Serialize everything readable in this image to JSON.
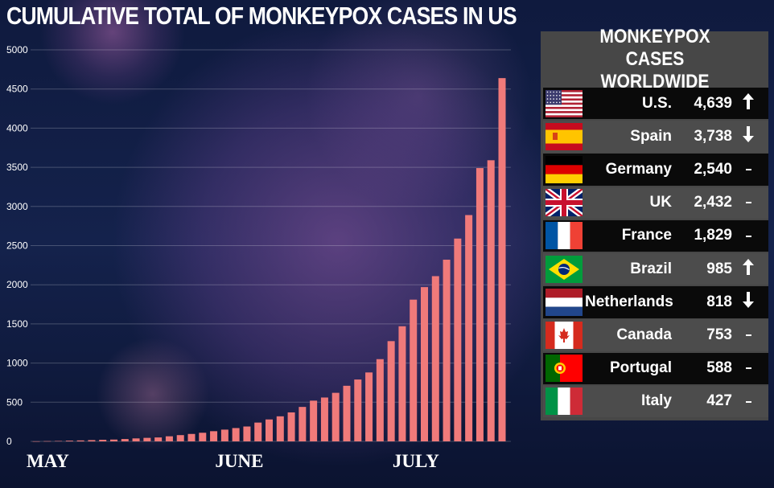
{
  "chart_data": {
    "type": "bar",
    "title": "CUMULATIVE TOTAL OF MONKEYPOX CASES IN US",
    "y_ticks": [
      "5000",
      "4500",
      "4000",
      "3500",
      "3000",
      "2500",
      "2000",
      "1500",
      "1000",
      "500",
      "0"
    ],
    "ylim": [
      0,
      5000
    ],
    "grid": true,
    "color": "#f07a7a",
    "x_labels": [
      {
        "text": "MAY",
        "index": 0
      },
      {
        "text": "JUNE",
        "index": 17
      },
      {
        "text": "JULY",
        "index": 33
      }
    ],
    "values": [
      1,
      3,
      5,
      9,
      12,
      16,
      20,
      23,
      30,
      38,
      45,
      50,
      65,
      80,
      95,
      110,
      130,
      150,
      170,
      190,
      240,
      280,
      320,
      370,
      440,
      520,
      560,
      620,
      710,
      790,
      880,
      1050,
      1280,
      1470,
      1810,
      1970,
      2110,
      2320,
      2590,
      2890,
      3490,
      3590,
      4639
    ]
  },
  "panel": {
    "title": "MONKEYPOX CASES WORLDWIDE",
    "rows": [
      {
        "flag": "us-flag-icon",
        "country": "U.S.",
        "count": "4,639",
        "trend": "up"
      },
      {
        "flag": "spain-flag-icon",
        "country": "Spain",
        "count": "3,738",
        "trend": "down"
      },
      {
        "flag": "germany-flag-icon",
        "country": "Germany",
        "count": "2,540",
        "trend": "same"
      },
      {
        "flag": "uk-flag-icon",
        "country": "UK",
        "count": "2,432",
        "trend": "same"
      },
      {
        "flag": "france-flag-icon",
        "country": "France",
        "count": "1,829",
        "trend": "same"
      },
      {
        "flag": "brazil-flag-icon",
        "country": "Brazil",
        "count": "985",
        "trend": "up"
      },
      {
        "flag": "netherlands-flag-icon",
        "country": "Netherlands",
        "count": "818",
        "trend": "down"
      },
      {
        "flag": "canada-flag-icon",
        "country": "Canada",
        "count": "753",
        "trend": "same"
      },
      {
        "flag": "portugal-flag-icon",
        "country": "Portugal",
        "count": "588",
        "trend": "same"
      },
      {
        "flag": "italy-flag-icon",
        "country": "Italy",
        "count": "427",
        "trend": "same"
      }
    ]
  }
}
